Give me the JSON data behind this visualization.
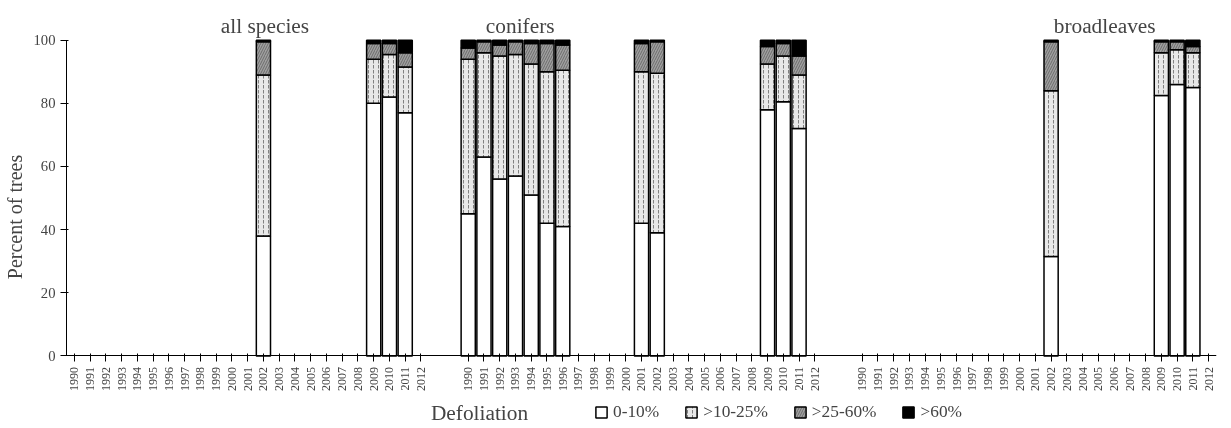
{
  "chart_data": {
    "type": "bar",
    "stacked": true,
    "categories": [
      "1990",
      "1991",
      "1992",
      "1993",
      "1994",
      "1995",
      "1996",
      "1997",
      "1998",
      "1999",
      "2000",
      "2001",
      "2002",
      "2003",
      "2004",
      "2005",
      "2006",
      "2007",
      "2008",
      "2009",
      "2010",
      "2011",
      "2012",
      null,
      null,
      "1990",
      "1991",
      "1992",
      "1993",
      "1994",
      "1995",
      "1996",
      "1997",
      "1998",
      "1999",
      "2000",
      "2001",
      "2002",
      "2003",
      "2004",
      "2005",
      "2006",
      "2007",
      "2008",
      "2009",
      "2010",
      "2011",
      "2012",
      null,
      null,
      "1990",
      "1991",
      "1992",
      "1993",
      "1994",
      "1995",
      "1996",
      "1997",
      "1998",
      "1999",
      "2000",
      "2001",
      "2002",
      "2003",
      "2004",
      "2005",
      "2006",
      "2007",
      "2008",
      "2009",
      "2010",
      "2011",
      "2012"
    ],
    "series": [
      {
        "name": "0-10%",
        "color": "#ffffff",
        "values": [
          null,
          null,
          null,
          null,
          null,
          null,
          null,
          null,
          null,
          null,
          null,
          null,
          38,
          null,
          null,
          null,
          null,
          null,
          null,
          80,
          82,
          77,
          null,
          null,
          null,
          45,
          63,
          56,
          57,
          51,
          42,
          41,
          null,
          null,
          null,
          null,
          42,
          39,
          null,
          null,
          null,
          null,
          null,
          null,
          78,
          80.5,
          72,
          null,
          null,
          null,
          null,
          null,
          null,
          null,
          null,
          null,
          null,
          null,
          null,
          null,
          null,
          null,
          31.5,
          null,
          null,
          null,
          null,
          null,
          null,
          82.5,
          86,
          85,
          null
        ]
      },
      {
        "name": ">10-25%",
        "color": "#e8e8e8",
        "values": [
          null,
          null,
          null,
          null,
          null,
          null,
          null,
          null,
          null,
          null,
          null,
          null,
          51,
          null,
          null,
          null,
          null,
          null,
          null,
          14,
          13.5,
          14.5,
          null,
          null,
          null,
          49,
          33,
          39,
          38.5,
          41.5,
          48,
          49.5,
          null,
          null,
          null,
          null,
          48,
          50.5,
          null,
          null,
          null,
          null,
          null,
          null,
          14.5,
          14.5,
          17,
          null,
          null,
          null,
          null,
          null,
          null,
          null,
          null,
          null,
          null,
          null,
          null,
          null,
          null,
          null,
          52.5,
          null,
          null,
          null,
          null,
          null,
          null,
          13.5,
          11,
          11,
          null
        ]
      },
      {
        "name": ">25-60%",
        "color": "#a0a0a0",
        "values": [
          null,
          null,
          null,
          null,
          null,
          null,
          null,
          null,
          null,
          null,
          null,
          null,
          10.5,
          null,
          null,
          null,
          null,
          null,
          null,
          5,
          3.5,
          4.5,
          null,
          null,
          null,
          3.5,
          3.5,
          3.5,
          4,
          6.5,
          9,
          8,
          null,
          null,
          null,
          null,
          9,
          10,
          null,
          null,
          null,
          null,
          null,
          null,
          5.5,
          4,
          6,
          null,
          null,
          null,
          null,
          null,
          null,
          null,
          null,
          null,
          null,
          null,
          null,
          null,
          null,
          null,
          15.5,
          null,
          null,
          null,
          null,
          null,
          null,
          3.5,
          2.5,
          2,
          null
        ]
      },
      {
        "name": ">60%",
        "color": "#000000",
        "values": [
          null,
          null,
          null,
          null,
          null,
          null,
          null,
          null,
          null,
          null,
          null,
          null,
          0.5,
          null,
          null,
          null,
          null,
          null,
          null,
          1,
          1,
          4,
          null,
          null,
          null,
          2.5,
          0.5,
          1.5,
          0.5,
          1,
          1,
          1.5,
          null,
          null,
          null,
          null,
          1,
          0.5,
          null,
          null,
          null,
          null,
          null,
          null,
          2,
          1,
          5,
          null,
          null,
          null,
          null,
          null,
          null,
          null,
          null,
          null,
          null,
          null,
          null,
          null,
          null,
          null,
          0.5,
          null,
          null,
          null,
          null,
          null,
          null,
          0.5,
          0.5,
          2,
          null
        ]
      }
    ],
    "ylabel": "Percent of trees",
    "ylim": [
      0,
      100
    ],
    "yticks": [
      0,
      20,
      40,
      60,
      80,
      100
    ],
    "legend": "bottom",
    "legend_title": "Defoliation",
    "grid": false,
    "annotations": [
      "all species",
      "conifers",
      "broadleaves"
    ]
  }
}
